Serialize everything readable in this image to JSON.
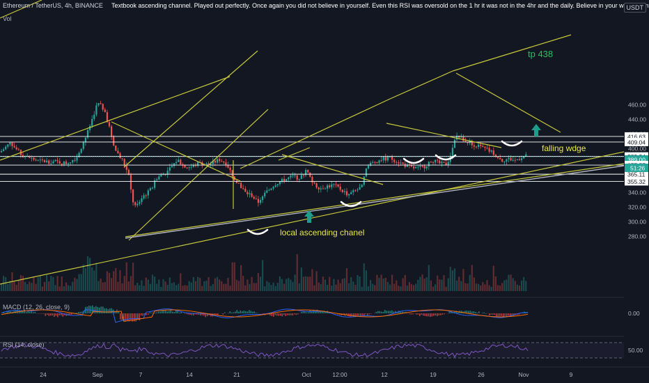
{
  "header": {
    "symbol": "Ethereum / TetherUS, 4h, BINANCE",
    "note": "Textbook ascending channel. Played out perfectly. Once again you did not believe in yourself. Even this RSI was oversold on the 1 hr it was not in the 4hr and the daily. Believe in your work Shannon",
    "vol_label": "Vol",
    "currency": "USDT"
  },
  "indicators": {
    "macd_label": "MACD (12, 26, close, 9)",
    "macd_zero": "0.00",
    "rsi_label": "RSI (14, close)",
    "rsi_level": "50.00"
  },
  "colors": {
    "background": "#131722",
    "up": "#26a69a",
    "down": "#ef5350",
    "trendline": "#c7c83a",
    "annotation_yellow": "#e8e84a",
    "tp_green": "#22c55e",
    "arrow_teal": "#1e9e8a",
    "macd_line": "#2962ff",
    "signal_line": "#ff6d00",
    "rsi_line": "#7e57c2",
    "horizontal_line": "#ffffff",
    "support_line": "#b2b5be"
  },
  "chart_data": {
    "type": "candlestick",
    "y_axis": {
      "ticks": [
        280,
        300,
        320,
        340,
        360,
        380,
        400,
        420,
        440,
        460
      ],
      "scale": "linear"
    },
    "x_axis": {
      "tick_labels": [
        "24",
        "Sep",
        "7",
        "14",
        "21",
        "Oct",
        "12:00",
        "12",
        "19",
        "26",
        "Nov",
        "9"
      ]
    },
    "horizontal_levels": [
      {
        "value": 416.63,
        "label": "416.63",
        "style": "white"
      },
      {
        "value": 409.04,
        "label": "409.04",
        "style": "white"
      },
      {
        "value": 389.34,
        "label": "389.34",
        "style": "white"
      },
      {
        "value": 389.0,
        "label": "389.00",
        "style": "current"
      },
      {
        "value": 377.57,
        "label": "377.57",
        "style": "white"
      },
      {
        "value": 365.11,
        "label": "365.11",
        "style": "white"
      },
      {
        "value": 355.32,
        "label": "355.32",
        "style": "white"
      }
    ],
    "countdown_label": "51:26",
    "annotations": [
      {
        "text": "tp 438",
        "color": "green"
      },
      {
        "text": "falling wdge",
        "color": "yellow"
      },
      {
        "text": "local ascending chanel",
        "color": "yellow"
      }
    ],
    "grid": false
  }
}
